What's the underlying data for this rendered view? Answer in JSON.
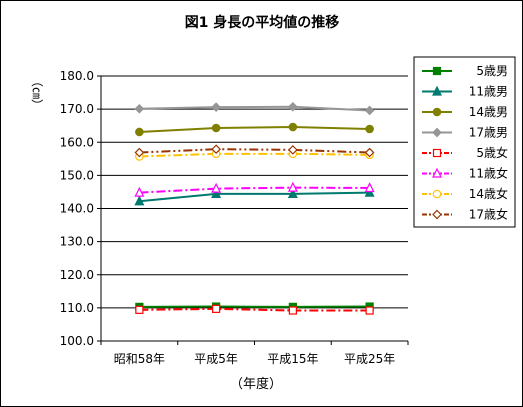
{
  "chart_data": {
    "type": "line",
    "title": "図1 身長の平均値の推移",
    "xlabel": "（年度）",
    "ylabel": "（㎝）",
    "categories": [
      "昭和58年",
      "平成5年",
      "平成15年",
      "平成25年"
    ],
    "ylim": [
      100,
      180
    ],
    "yticks": [
      "100.0",
      "110.0",
      "120.0",
      "130.0",
      "140.0",
      "150.0",
      "160.0",
      "170.0",
      "180.0"
    ],
    "grid": true,
    "legend_position": "right",
    "series": [
      {
        "name": "5歳男",
        "values": [
          110.3,
          110.4,
          110.3,
          110.4
        ],
        "color": "#008000",
        "marker": "square",
        "filled": true,
        "dash": "solid"
      },
      {
        "name": "11歳男",
        "values": [
          142.2,
          144.4,
          144.4,
          144.8
        ],
        "color": "#007a6e",
        "marker": "triangle",
        "filled": true,
        "dash": "solid"
      },
      {
        "name": "14歳男",
        "values": [
          163.1,
          164.3,
          164.6,
          164.0
        ],
        "color": "#808000",
        "marker": "circle",
        "filled": true,
        "dash": "solid"
      },
      {
        "name": "17歳男",
        "values": [
          170.1,
          170.6,
          170.7,
          169.6
        ],
        "color": "#969696",
        "marker": "diamond",
        "filled": true,
        "dash": "solid"
      },
      {
        "name": "5歳女",
        "values": [
          109.4,
          109.7,
          109.2,
          109.2
        ],
        "color": "#ff0000",
        "marker": "square",
        "filled": false,
        "dash": "dashdot"
      },
      {
        "name": "11歳女",
        "values": [
          144.8,
          146.0,
          146.3,
          146.2
        ],
        "color": "#ff00ff",
        "marker": "triangle",
        "filled": false,
        "dash": "dashdot"
      },
      {
        "name": "14歳女",
        "values": [
          155.7,
          156.5,
          156.5,
          156.2
        ],
        "color": "#ffc000",
        "marker": "circle",
        "filled": false,
        "dash": "dashdot"
      },
      {
        "name": "17歳女",
        "values": [
          156.9,
          157.9,
          157.7,
          156.9
        ],
        "color": "#993300",
        "marker": "diamond",
        "filled": false,
        "dash": "dashdotdot"
      }
    ]
  }
}
